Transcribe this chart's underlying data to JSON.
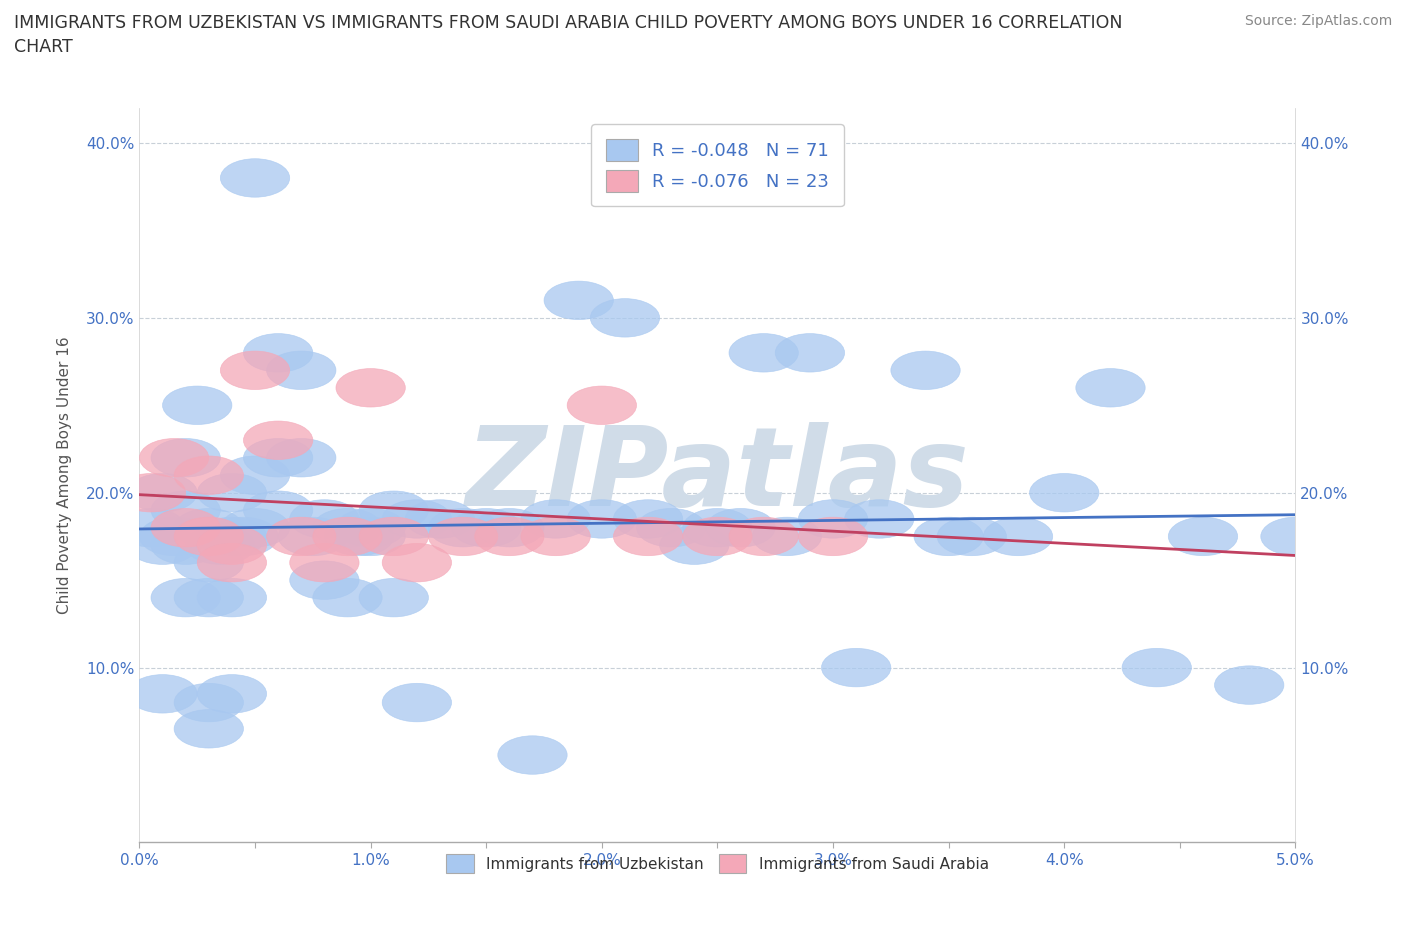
{
  "title": "IMMIGRANTS FROM UZBEKISTAN VS IMMIGRANTS FROM SAUDI ARABIA CHILD POVERTY AMONG BOYS UNDER 16 CORRELATION\nCHART",
  "source_text": "Source: ZipAtlas.com",
  "ylabel": "Child Poverty Among Boys Under 16",
  "xlim": [
    0.0,
    0.05
  ],
  "ylim": [
    0.0,
    0.42
  ],
  "xticks": [
    0.0,
    0.005,
    0.01,
    0.015,
    0.02,
    0.025,
    0.03,
    0.035,
    0.04,
    0.045,
    0.05
  ],
  "yticks": [
    0.0,
    0.1,
    0.2,
    0.3,
    0.4
  ],
  "xticklabels": [
    "0.0%",
    "",
    "1.0%",
    "",
    "2.0%",
    "",
    "3.0%",
    "",
    "4.0%",
    "",
    "5.0%"
  ],
  "yticklabels_left": [
    "",
    "10.0%",
    "20.0%",
    "30.0%",
    "40.0%"
  ],
  "yticklabels_right": [
    "",
    "10.0%",
    "20.0%",
    "30.0%",
    "40.0%"
  ],
  "legend1_label": "R = -0.048   N = 71",
  "legend2_label": "R = -0.076   N = 23",
  "bottom_legend1": "Immigrants from Uzbekistan",
  "bottom_legend2": "Immigrants from Saudi Arabia",
  "color_uzbekistan": "#a8c8f0",
  "color_saudi": "#f4a8b8",
  "line_color_uzbekistan": "#4472c4",
  "line_color_saudi": "#c04060",
  "watermark": "ZIPatlas",
  "watermark_color": "#d0dce8",
  "uzbekistan_x": [
    0.0005,
    0.001,
    0.001,
    0.001,
    0.0015,
    0.002,
    0.002,
    0.002,
    0.002,
    0.0025,
    0.003,
    0.003,
    0.003,
    0.003,
    0.003,
    0.0035,
    0.004,
    0.004,
    0.004,
    0.004,
    0.0045,
    0.005,
    0.005,
    0.005,
    0.006,
    0.006,
    0.006,
    0.007,
    0.007,
    0.0075,
    0.008,
    0.008,
    0.009,
    0.009,
    0.0095,
    0.01,
    0.01,
    0.011,
    0.011,
    0.012,
    0.012,
    0.013,
    0.014,
    0.015,
    0.016,
    0.017,
    0.018,
    0.019,
    0.02,
    0.021,
    0.022,
    0.023,
    0.024,
    0.025,
    0.026,
    0.027,
    0.028,
    0.029,
    0.03,
    0.031,
    0.032,
    0.034,
    0.035,
    0.036,
    0.038,
    0.04,
    0.042,
    0.044,
    0.046,
    0.048,
    0.05
  ],
  "uzbekistan_y": [
    0.18,
    0.2,
    0.17,
    0.085,
    0.175,
    0.19,
    0.17,
    0.22,
    0.14,
    0.25,
    0.18,
    0.16,
    0.08,
    0.14,
    0.065,
    0.17,
    0.2,
    0.175,
    0.14,
    0.085,
    0.175,
    0.21,
    0.18,
    0.38,
    0.28,
    0.19,
    0.22,
    0.27,
    0.22,
    0.175,
    0.185,
    0.15,
    0.18,
    0.14,
    0.175,
    0.18,
    0.175,
    0.19,
    0.14,
    0.185,
    0.08,
    0.185,
    0.18,
    0.18,
    0.18,
    0.05,
    0.185,
    0.31,
    0.185,
    0.3,
    0.185,
    0.18,
    0.17,
    0.18,
    0.18,
    0.28,
    0.175,
    0.28,
    0.185,
    0.1,
    0.185,
    0.27,
    0.175,
    0.175,
    0.175,
    0.2,
    0.26,
    0.1,
    0.175,
    0.09,
    0.175
  ],
  "saudi_x": [
    0.0005,
    0.0015,
    0.002,
    0.003,
    0.003,
    0.004,
    0.004,
    0.005,
    0.006,
    0.007,
    0.008,
    0.009,
    0.01,
    0.011,
    0.012,
    0.014,
    0.016,
    0.018,
    0.02,
    0.022,
    0.025,
    0.027,
    0.03
  ],
  "saudi_y": [
    0.2,
    0.22,
    0.18,
    0.21,
    0.175,
    0.17,
    0.16,
    0.27,
    0.23,
    0.175,
    0.16,
    0.175,
    0.26,
    0.175,
    0.16,
    0.175,
    0.175,
    0.175,
    0.25,
    0.175,
    0.175,
    0.175,
    0.175
  ]
}
